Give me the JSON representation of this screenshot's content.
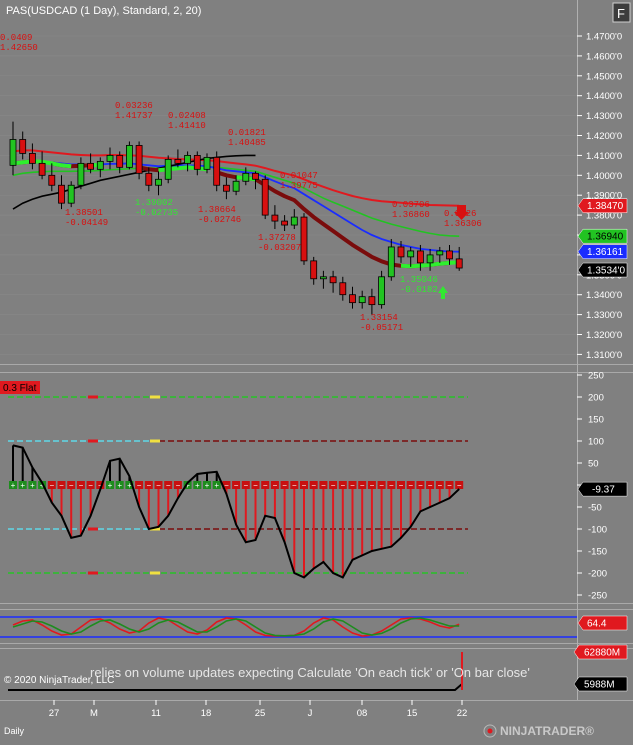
{
  "chart_title": "PAS(USDCAD (1 Day), Standard, 2, 20)",
  "f_button": "F",
  "copyright": "© 2020 NinjaTrader, LLC",
  "timeframe": "Daily",
  "brand": "NINJATRADER®",
  "warning": "relies on volume updates expecting Calculate 'On each tick' or 'On bar close'",
  "x_axis": {
    "labels": [
      "27",
      "M",
      "11",
      "18",
      "25",
      "J",
      "08",
      "15",
      "22"
    ]
  },
  "price_panel": {
    "ticks": [
      "1.4700'0",
      "1.4600'0",
      "1.4500'0",
      "1.4400'0",
      "1.4300'0",
      "1.4200'0",
      "1.4100'0",
      "1.4000'0",
      "1.3900'0",
      "1.3800'0",
      "1.3700'0",
      "1.3600'0",
      "1.3500'0",
      "1.3400'0",
      "1.3300'0",
      "1.3200'0",
      "1.3100'0"
    ],
    "badges": [
      {
        "text": "1.38470",
        "bg": "#e0191f",
        "fg": "#ffffff"
      },
      {
        "text": "1.36940",
        "bg": "#22c322",
        "fg": "#000000"
      },
      {
        "text": "1.36161",
        "bg": "#1a2cff",
        "fg": "#ffffff"
      },
      {
        "text": "1.3534'0",
        "bg": "#000000",
        "fg": "#ffffff"
      }
    ],
    "annotations": [
      {
        "lines": [
          "0.0409",
          "1.42650"
        ],
        "color": "red"
      },
      {
        "lines": [
          "0.03236",
          "1.41737"
        ],
        "color": "red"
      },
      {
        "lines": [
          "0.02408",
          "1.41410"
        ],
        "color": "red"
      },
      {
        "lines": [
          "0.01821",
          "1.40485"
        ],
        "color": "red"
      },
      {
        "lines": [
          "0.01047",
          "1.39775"
        ],
        "color": "red"
      },
      {
        "lines": [
          "0.03706",
          "1.36860"
        ],
        "color": "red"
      },
      {
        "lines": [
          "0.0126",
          "1.36306"
        ],
        "color": "red"
      },
      {
        "lines": [
          "1.38501",
          "-0.04149"
        ],
        "color": "red"
      },
      {
        "lines": [
          "1.39002",
          "-0.02735"
        ],
        "color": "green"
      },
      {
        "lines": [
          "1.38664",
          "-0.02746"
        ],
        "color": "red"
      },
      {
        "lines": [
          "1.37278",
          "-0.03207"
        ],
        "color": "red"
      },
      {
        "lines": [
          "1.35046",
          "-0.0182"
        ],
        "color": "green"
      },
      {
        "lines": [
          "1.33154",
          "-0.05171"
        ],
        "color": "red"
      }
    ]
  },
  "cci_panel": {
    "label": "0.3 Flat",
    "ticks": [
      "250",
      "200",
      "150",
      "100",
      "50",
      "0",
      "-50",
      "-100",
      "-150",
      "-200",
      "-250"
    ],
    "badge": {
      "text": "-9.37",
      "bg": "#000000",
      "fg": "#ffffff"
    }
  },
  "stoch_panel": {
    "badge": {
      "text": "64.4",
      "bg": "#e0191f",
      "fg": "#ffffff"
    }
  },
  "volume_panel": {
    "badges": [
      {
        "text": "62880M",
        "bg": "#e0191f",
        "fg": "#ffffff"
      },
      {
        "text": "5988M",
        "bg": "#000000",
        "fg": "#ffffff"
      }
    ]
  },
  "colors": {
    "background": "#808080",
    "bull": "#22c322",
    "bear": "#d81010",
    "wma_red": "#e0191f",
    "ema_green": "#22c322",
    "ema_blue": "#1a2cff",
    "separator": "#a9a9a9"
  }
}
